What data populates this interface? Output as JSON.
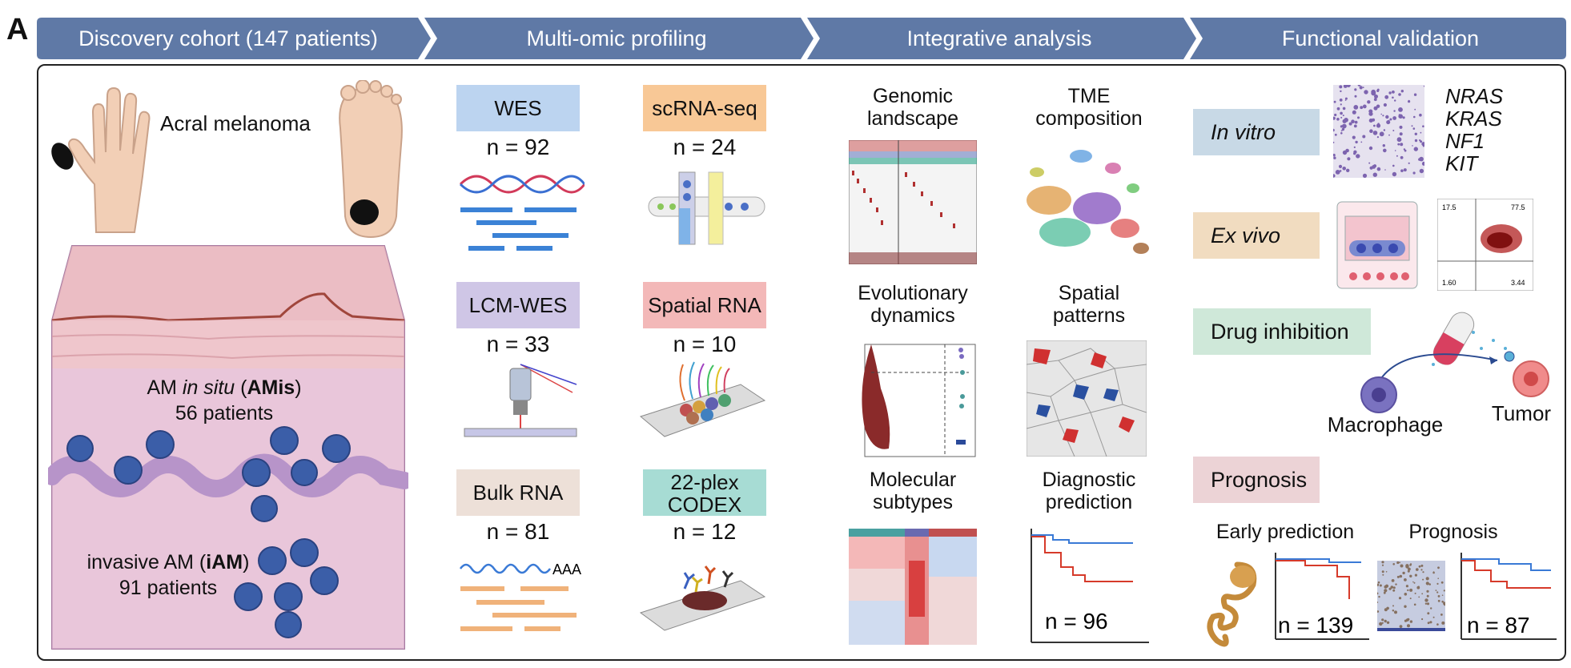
{
  "panel_label": "A",
  "colors": {
    "header": "#5f79a6",
    "wes": "#bcd4f0",
    "scrna": "#f8c896",
    "lcm": "#cfc6e6",
    "spatial": "#f3b8b8",
    "bulk": "#ede0d8",
    "codex": "#a7dcd4",
    "invitro": "#c8d9e6",
    "exvivo": "#f1dcc0",
    "drug": "#cfe8d9",
    "prognosis": "#ecd3d6"
  },
  "headers": [
    "Discovery cohort (147 patients)",
    "Multi-omic profiling",
    "Integrative analysis",
    "Functional validation"
  ],
  "cohort": {
    "title": "Acral melanoma",
    "amis_prefix": "AM ",
    "amis_italic": "in situ",
    "amis_open": " (",
    "amis_bold": "AMis",
    "amis_close": ")",
    "amis_patients": "56 patients",
    "iam_prefix": "invasive AM (",
    "iam_bold": "iAM",
    "iam_close": ")",
    "iam_patients": "91 patients"
  },
  "profiling": [
    {
      "label": "WES",
      "n": "n = 92"
    },
    {
      "label": "scRNA-seq",
      "n": "n = 24"
    },
    {
      "label": "LCM-WES",
      "n": "n = 33"
    },
    {
      "label": "Spatial RNA",
      "n": "n = 10"
    },
    {
      "label": "Bulk RNA",
      "n": "n = 81"
    },
    {
      "label_line1": "22-plex",
      "label_line2": "CODEX",
      "n": "n = 12"
    }
  ],
  "bulk_aaa": "AAA",
  "analysis": {
    "genomic_1": "Genomic",
    "genomic_2": "landscape",
    "tme_1": "TME",
    "tme_2": "composition",
    "evo_1": "Evolutionary",
    "evo_2": "dynamics",
    "spatial_1": "Spatial",
    "spatial_2": "patterns",
    "mol_1": "Molecular",
    "mol_2": "subtypes",
    "diag_1": "Diagnostic",
    "diag_2": "prediction",
    "diag_n": "n = 96"
  },
  "validation": {
    "invitro_1": "In vitro",
    "exvivo": "Ex vivo",
    "drug": "Drug inhibition",
    "prognosis_tag": "Prognosis",
    "genes": [
      "NRAS",
      "KRAS",
      "NF1",
      "KIT"
    ],
    "flow_tl": "17.5",
    "flow_tr": "77.5",
    "flow_bl": "1.60",
    "flow_br": "3.44",
    "macrophage": "Macrophage",
    "tumor": "Tumor",
    "early": "Early prediction",
    "prog_label": "Prognosis",
    "early_n": "n = 139",
    "prog_n": "n = 87"
  }
}
